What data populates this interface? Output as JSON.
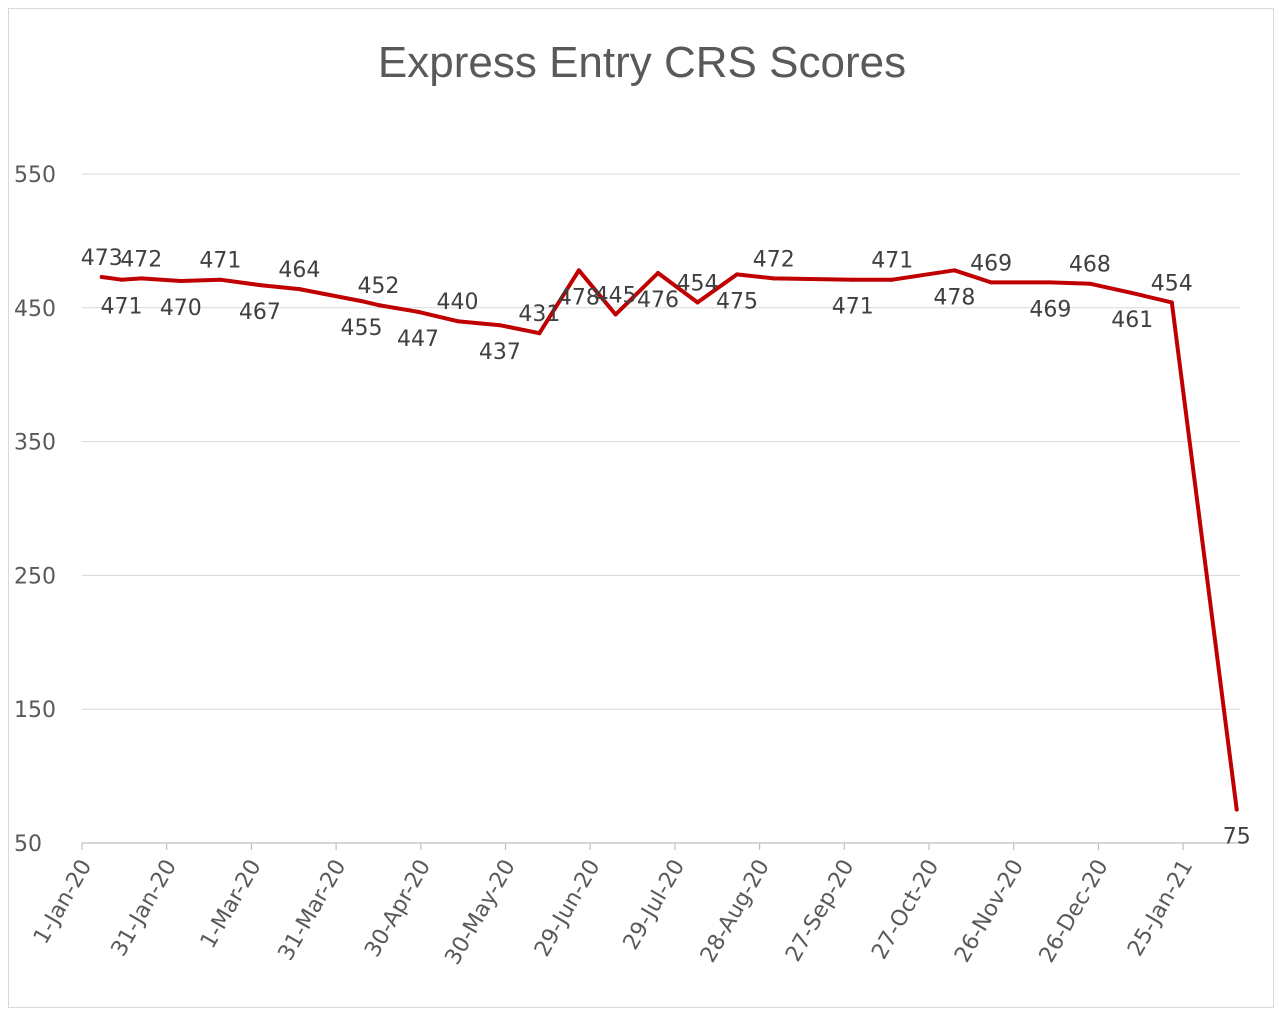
{
  "chart_data": {
    "type": "line",
    "title": "Express Entry CRS Scores",
    "xlabel": "",
    "ylabel": "",
    "ylim": [
      50,
      550
    ],
    "y_ticks": [
      50,
      150,
      250,
      350,
      450,
      550
    ],
    "grid": true,
    "legend": "none",
    "line_color": "#c00000",
    "x_tick_labels": [
      "1-Jan-20",
      "31-Jan-20",
      "1-Mar-20",
      "31-Mar-20",
      "30-Apr-20",
      "30-May-20",
      "29-Jun-20",
      "29-Jul-20",
      "28-Aug-20",
      "27-Sep-20",
      "27-Oct-20",
      "26-Nov-20",
      "26-Dec-20",
      "25-Jan-21"
    ],
    "series": [
      {
        "x": [
          "2020-01-08",
          "2020-01-15",
          "2020-01-22",
          "2020-02-05",
          "2020-02-19",
          "2020-03-04",
          "2020-03-18",
          "2020-04-09",
          "2020-04-15",
          "2020-04-29",
          "2020-05-13",
          "2020-05-28",
          "2020-06-11",
          "2020-06-25",
          "2020-07-08",
          "2020-07-23",
          "2020-08-06",
          "2020-08-20",
          "2020-09-02",
          "2020-09-30",
          "2020-10-14",
          "2020-11-05",
          "2020-11-18",
          "2020-12-09",
          "2020-12-23",
          "2021-01-07",
          "2021-01-21",
          "2021-02-13"
        ],
        "values": [
          473,
          471,
          472,
          470,
          471,
          467,
          464,
          455,
          452,
          447,
          440,
          437,
          431,
          478,
          445,
          476,
          454,
          475,
          472,
          471,
          471,
          478,
          469,
          469,
          468,
          461,
          454,
          75
        ],
        "labels": [
          "473",
          "471",
          "472",
          "470",
          "471",
          "467",
          "464",
          "455",
          "452",
          "447",
          "440",
          "437",
          "431",
          "478",
          "445",
          "476",
          "454",
          "475",
          "472",
          "471",
          "471",
          "478",
          "469",
          "469",
          "468",
          "461",
          "454",
          "75"
        ]
      }
    ]
  }
}
